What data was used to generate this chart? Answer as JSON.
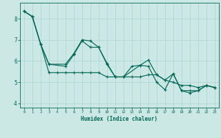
{
  "background_color": "#cce8e4",
  "grid_color": "#aad4d0",
  "line_color": "#006655",
  "xlabel": "Humidex (Indice chaleur)",
  "xlim": [
    -0.5,
    23.5
  ],
  "ylim": [
    3.8,
    8.75
  ],
  "yticks": [
    4,
    5,
    6,
    7,
    8
  ],
  "xticks": [
    0,
    1,
    2,
    3,
    4,
    5,
    6,
    7,
    8,
    9,
    10,
    11,
    12,
    13,
    14,
    15,
    16,
    17,
    18,
    19,
    20,
    21,
    22,
    23
  ],
  "series": [
    {
      "x": [
        0,
        1,
        2,
        3,
        4,
        5,
        6,
        7,
        8,
        9,
        10,
        11,
        12,
        13,
        14,
        15,
        16,
        17,
        18,
        19,
        20,
        21,
        22,
        23
      ],
      "y": [
        8.35,
        8.1,
        6.8,
        5.45,
        5.45,
        5.45,
        5.45,
        5.45,
        5.45,
        5.45,
        5.25,
        5.25,
        5.25,
        5.25,
        5.25,
        5.35,
        5.35,
        5.1,
        5.0,
        4.85,
        4.85,
        4.75,
        4.85,
        4.75
      ]
    },
    {
      "x": [
        0,
        1,
        2,
        3,
        5,
        6,
        7,
        8,
        9,
        10,
        11,
        12,
        13,
        14,
        15,
        16,
        17,
        18,
        19,
        20,
        21,
        22,
        23
      ],
      "y": [
        8.35,
        8.1,
        6.8,
        5.85,
        5.85,
        6.35,
        7.0,
        6.95,
        6.65,
        5.9,
        5.25,
        5.25,
        5.75,
        5.8,
        6.05,
        5.35,
        5.1,
        5.4,
        4.6,
        4.5,
        4.6,
        4.85,
        4.75
      ]
    },
    {
      "x": [
        0,
        1,
        2,
        3,
        5,
        6,
        7,
        8,
        9,
        10,
        11,
        12,
        14,
        15,
        16,
        17,
        18,
        19,
        20,
        21,
        22,
        23
      ],
      "y": [
        8.35,
        8.1,
        6.8,
        5.85,
        5.75,
        6.3,
        6.95,
        6.65,
        6.65,
        5.85,
        5.25,
        5.25,
        5.8,
        5.75,
        5.0,
        4.65,
        5.4,
        4.6,
        4.6,
        4.6,
        4.85,
        4.75
      ]
    }
  ]
}
